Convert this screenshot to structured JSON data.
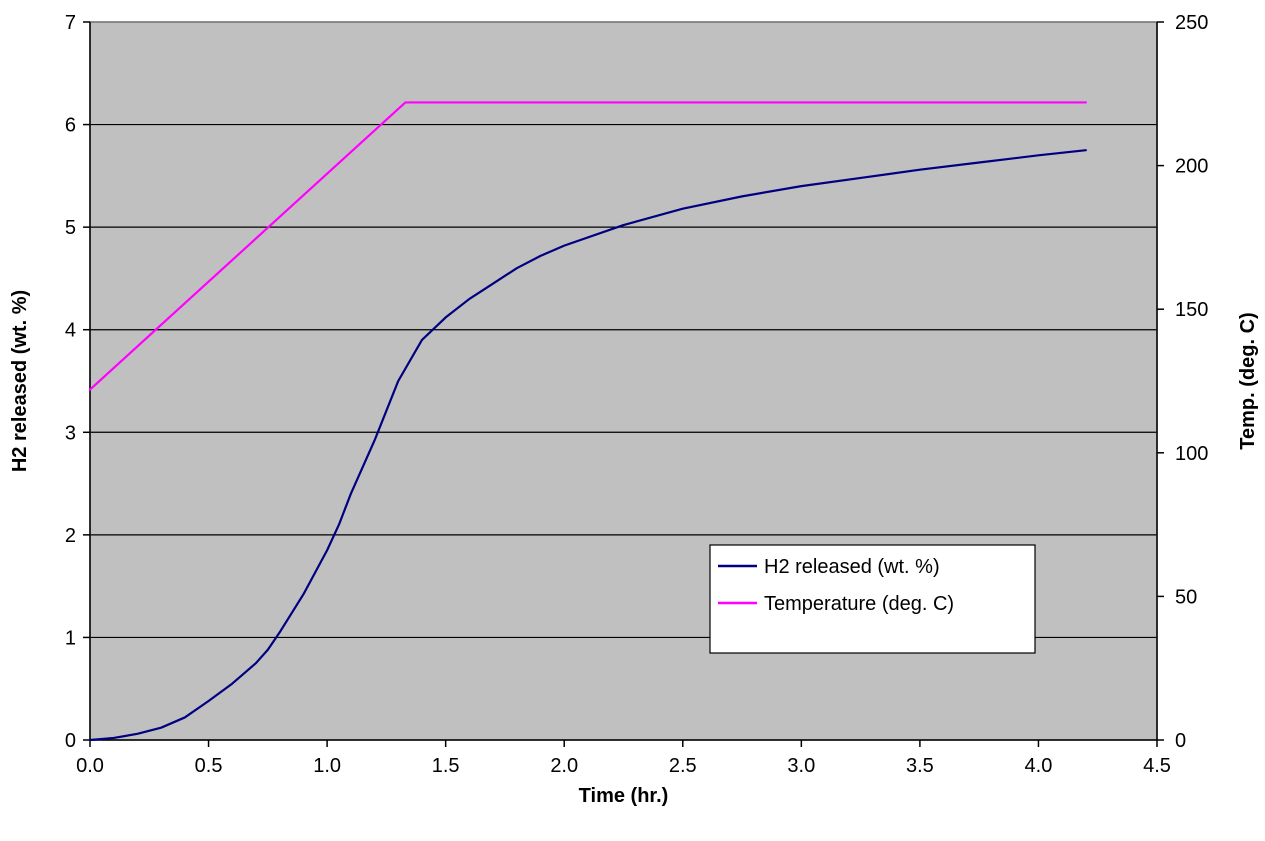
{
  "chart_data": {
    "type": "line",
    "background_color": "#c0c0c0",
    "grid": true,
    "legend_position": "lower-right",
    "xlabel": "Time (hr.)",
    "ylabel_left": "H2 released (wt. %)",
    "ylabel_right": "Temp. (deg. C)",
    "xlim": [
      0,
      4.5
    ],
    "ylim_left": [
      0,
      7
    ],
    "ylim_right": [
      0,
      250
    ],
    "x_ticks": [
      "0.0",
      "0.5",
      "1.0",
      "1.5",
      "2.0",
      "2.5",
      "3.0",
      "3.5",
      "4.0",
      "4.5"
    ],
    "y_left_ticks": [
      "0",
      "1",
      "2",
      "3",
      "4",
      "5",
      "6",
      "7"
    ],
    "y_right_ticks": [
      "0",
      "50",
      "100",
      "150",
      "200",
      "250"
    ],
    "series": [
      {
        "name": "H2 released (wt. %)",
        "axis": "left",
        "color": "#000080",
        "x": [
          0,
          0.1,
          0.2,
          0.3,
          0.4,
          0.5,
          0.6,
          0.7,
          0.75,
          0.8,
          0.9,
          1.0,
          1.05,
          1.1,
          1.2,
          1.3,
          1.4,
          1.5,
          1.6,
          1.7,
          1.8,
          1.9,
          2.0,
          2.25,
          2.5,
          2.75,
          3.0,
          3.25,
          3.5,
          3.75,
          4.0,
          4.2
        ],
        "y": [
          0,
          0.02,
          0.06,
          0.12,
          0.22,
          0.38,
          0.55,
          0.75,
          0.88,
          1.05,
          1.42,
          1.85,
          2.1,
          2.4,
          2.92,
          3.5,
          3.9,
          4.12,
          4.3,
          4.45,
          4.6,
          4.72,
          4.82,
          5.02,
          5.18,
          5.3,
          5.4,
          5.48,
          5.56,
          5.63,
          5.7,
          5.75
        ]
      },
      {
        "name": "Temperature (deg. C)",
        "axis": "right",
        "color": "#ff00ff",
        "x": [
          0,
          1.33,
          1.5,
          2.0,
          2.5,
          3.0,
          3.5,
          4.0,
          4.2
        ],
        "y": [
          122,
          222,
          222,
          222,
          222,
          222,
          222,
          222,
          222
        ]
      }
    ]
  }
}
